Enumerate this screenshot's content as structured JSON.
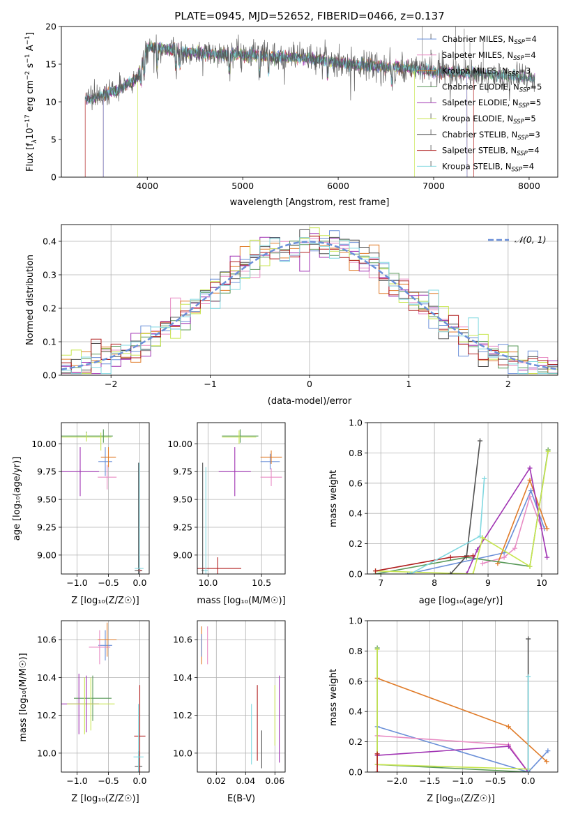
{
  "colors": {
    "Chabrier MILES": "#6a8fd8",
    "Salpeter MILES": "#e88cc4",
    "Kroupa MILES": "#e07b28",
    "Chabrier ELODIE": "#5a9a5a",
    "Salpeter ELODIE": "#a033b3",
    "Kroupa ELODIE": "#c8e650",
    "Chabrier STELIB": "#505050",
    "Salpeter STELIB": "#b01e1e",
    "Kroupa STELIB": "#80d8e0",
    "normal": "#6a8fd8"
  },
  "chart_data": [
    {
      "id": "spectrum",
      "type": "line",
      "title": "PLATE=0945, MJD=52652, FIBERID=0466, z=0.137",
      "xlabel": "wavelength [Angstrom, rest frame]",
      "ylabel_parts": [
        "Flux [f",
        "λ",
        "10",
        "−17",
        " erg cm",
        "−2",
        " s",
        "−1",
        " A",
        "−1",
        "]"
      ],
      "xlim": [
        3100,
        8300
      ],
      "ylim": [
        0,
        20
      ],
      "xticks": [
        4000,
        5000,
        6000,
        7000,
        8000
      ],
      "yticks": [
        0,
        5,
        10,
        15,
        20
      ],
      "legend_position": "upper-right",
      "legend": [
        {
          "name": "Chabrier MILES",
          "nssp": "4"
        },
        {
          "name": "Salpeter MILES",
          "nssp": "4"
        },
        {
          "name": "Kroupa MILES",
          "nssp": "3"
        },
        {
          "name": "Chabrier ELODIE",
          "nssp": "5"
        },
        {
          "name": "Salpeter ELODIE",
          "nssp": "5"
        },
        {
          "name": "Kroupa ELODIE",
          "nssp": "5"
        },
        {
          "name": "Chabrier STELIB",
          "nssp": "3"
        },
        {
          "name": "Salpeter STELIB",
          "nssp": "4"
        },
        {
          "name": "Kroupa STELIB",
          "nssp": "4"
        }
      ],
      "data_continuum": {
        "x": [
          3350,
          3500,
          3700,
          3900,
          4000,
          4100,
          4300,
          4600,
          4900,
          5200,
          5500,
          5800,
          6100,
          6400,
          6700,
          7000,
          7300,
          7600,
          7900,
          8060
        ],
        "y": [
          10.2,
          10.8,
          11.5,
          13.2,
          17.2,
          17.2,
          16.8,
          16.4,
          16.3,
          16.1,
          15.9,
          15.6,
          15.0,
          14.7,
          14.5,
          14.1,
          13.8,
          13.6,
          13.3,
          13.0
        ]
      },
      "model_cutoffs": [
        {
          "name": "Kroupa MILES",
          "range": [
            3540,
            7350
          ]
        },
        {
          "name": "Salpeter MILES",
          "range": [
            3540,
            7350
          ]
        },
        {
          "name": "Chabrier MILES",
          "range": [
            3540,
            7350
          ]
        },
        {
          "name": "Kroupa ELODIE",
          "range": [
            3900,
            6800
          ]
        },
        {
          "name": "Salpeter STELIB",
          "range": [
            3350,
            7420
          ]
        }
      ]
    },
    {
      "id": "residuals",
      "type": "line",
      "xlabel": "(data-model)/error",
      "ylabel": "Normed distribution",
      "xlim": [
        -2.5,
        2.5
      ],
      "ylim": [
        0,
        0.45
      ],
      "xticks": [
        -2,
        -1,
        0,
        1,
        2
      ],
      "yticks": [
        0.0,
        0.1,
        0.2,
        0.3,
        0.4
      ],
      "grid": true,
      "legend_position": "upper-right",
      "legend_label": "𝒩(0, 1)",
      "bin_width": 0.1,
      "reference": {
        "name": "𝒩(0, 1)",
        "mean": 0,
        "sigma": 1
      }
    },
    {
      "id": "age-Z",
      "type": "scatter",
      "xlabel": "Z [log₁₀(Z/Z☉)]",
      "ylabel": "age  [log₁₀(age/yr)]",
      "xlim": [
        -1.25,
        0.15
      ],
      "ylim": [
        8.83,
        10.19
      ],
      "xticks": [
        -1.0,
        -0.5,
        0.0
      ],
      "yticks": [
        9.0,
        9.25,
        9.5,
        9.75,
        10.0
      ],
      "grid": true,
      "crosses": [
        {
          "name": "Chabrier MILES",
          "x": -0.55,
          "xerr": 0.11,
          "y": 9.84,
          "yerr": 0.13
        },
        {
          "name": "Salpeter MILES",
          "x": -0.52,
          "xerr": 0.15,
          "y": 9.7,
          "yerr": 0.11
        },
        {
          "name": "Kroupa MILES",
          "x": -0.5,
          "xerr": 0.12,
          "y": 9.88,
          "yerr": 0.09
        },
        {
          "name": "Chabrier ELODIE",
          "x": -0.85,
          "xerr": 0.42,
          "y": 10.07,
          "yerr": 0.04
        },
        {
          "name": "Salpeter ELODIE",
          "x": -0.95,
          "xerr": 0.3,
          "y": 9.75,
          "yerr": 0.22
        },
        {
          "name": "Kroupa ELODIE",
          "x": -0.85,
          "xerr": 0.4,
          "y": 10.06,
          "yerr": 0.04
        },
        {
          "name": "Chabrier STELIB",
          "x": -0.02,
          "xerr": 0.06,
          "y": 8.86,
          "yerr": 0.97
        },
        {
          "name": "Salpeter STELIB",
          "x": 0.0,
          "xerr": 0.03,
          "y": 8.86,
          "yerr": 0.02
        },
        {
          "name": "Kroupa STELIB",
          "x": -0.01,
          "xerr": 0.07,
          "y": 8.88,
          "yerr": 0.95
        },
        {
          "name": "Salpeter ELODIE",
          "x": -0.95,
          "xerr": 0.0,
          "y": 9.75,
          "yerr": 0.02
        },
        {
          "name": "Kroupa ELODIE",
          "x": -0.62,
          "xerr": 0.0,
          "y": 10.02,
          "yerr": 0.08
        },
        {
          "name": "Chabrier ELODIE",
          "x": -0.58,
          "xerr": 0.0,
          "y": 10.07,
          "yerr": 0.06
        }
      ]
    },
    {
      "id": "age-mass",
      "type": "scatter",
      "xlabel": "mass [log₁₀(M/M☉)]",
      "xlim": [
        9.9,
        10.72
      ],
      "ylim": [
        8.83,
        10.19
      ],
      "xticks": [
        10.0,
        10.5
      ],
      "yticks": [
        9.0,
        9.25,
        9.5,
        9.75,
        10.0
      ],
      "grid": true,
      "crosses": [
        {
          "name": "Chabrier MILES",
          "x": 10.58,
          "xerr": 0.09,
          "y": 9.84,
          "yerr": 0.07
        },
        {
          "name": "Salpeter MILES",
          "x": 10.59,
          "xerr": 0.1,
          "y": 9.7,
          "yerr": 0.08
        },
        {
          "name": "Kroupa MILES",
          "x": 10.59,
          "xerr": 0.1,
          "y": 9.88,
          "yerr": 0.06
        },
        {
          "name": "Chabrier ELODIE",
          "x": 10.3,
          "xerr": 0.17,
          "y": 10.07,
          "yerr": 0.06
        },
        {
          "name": "Salpeter ELODIE",
          "x": 10.25,
          "xerr": 0.15,
          "y": 9.75,
          "yerr": 0.22
        },
        {
          "name": "Kroupa ELODIE",
          "x": 10.29,
          "xerr": 0.16,
          "y": 10.06,
          "yerr": 0.06
        },
        {
          "name": "Chabrier STELIB",
          "x": 9.95,
          "xerr": 0.01,
          "y": 8.86,
          "yerr": 0.97
        },
        {
          "name": "Salpeter STELIB",
          "x": 10.09,
          "xerr": 0.22,
          "y": 8.88,
          "yerr": 0.1
        },
        {
          "name": "Kroupa STELIB",
          "x": 9.98,
          "xerr": 0.02,
          "y": 8.86,
          "yerr": 0.93
        }
      ]
    },
    {
      "id": "weight-age",
      "type": "line",
      "xlabel": "age  [log₁₀(age/yr)]",
      "ylabel": "mass weight",
      "xlim": [
        6.75,
        10.3
      ],
      "ylim": [
        0,
        1.0
      ],
      "xticks": [
        7,
        8,
        9,
        10
      ],
      "yticks": [
        0.0,
        0.2,
        0.4,
        0.6,
        0.8,
        1.0
      ],
      "grid": true,
      "series": [
        {
          "name": "Chabrier MILES",
          "x": [
            7.5,
            9.3,
            9.8,
            10.05
          ],
          "y": [
            0.0,
            0.14,
            0.55,
            0.3
          ]
        },
        {
          "name": "Salpeter MILES",
          "x": [
            8.9,
            9.3,
            9.5,
            9.78,
            10.0
          ],
          "y": [
            0.07,
            0.11,
            0.17,
            0.51,
            0.3
          ]
        },
        {
          "name": "Kroupa MILES",
          "x": [
            9.18,
            9.78,
            10.1
          ],
          "y": [
            0.07,
            0.62,
            0.3
          ]
        },
        {
          "name": "Chabrier ELODIE",
          "x": [
            6.9,
            8.6,
            9.78,
            10.12
          ],
          "y": [
            0.0,
            0.11,
            0.05,
            0.82
          ]
        },
        {
          "name": "Salpeter ELODIE",
          "x": [
            8.6,
            8.8,
            9.78,
            10.1
          ],
          "y": [
            0.0,
            0.16,
            0.7,
            0.11
          ]
        },
        {
          "name": "Kroupa ELODIE",
          "x": [
            6.9,
            8.72,
            8.9,
            9.78,
            10.12
          ],
          "y": [
            0.02,
            0.0,
            0.24,
            0.05,
            0.81
          ]
        },
        {
          "name": "Chabrier STELIB",
          "x": [
            8.3,
            8.6,
            8.85
          ],
          "y": [
            0.0,
            0.12,
            0.88
          ]
        },
        {
          "name": "Salpeter STELIB",
          "x": [
            6.9,
            8.3,
            8.72
          ],
          "y": [
            0.02,
            0.11,
            0.12
          ]
        },
        {
          "name": "Kroupa STELIB",
          "x": [
            7.55,
            8.85,
            8.93
          ],
          "y": [
            0.0,
            0.25,
            0.63
          ]
        }
      ]
    },
    {
      "id": "mass-Z",
      "type": "scatter",
      "xlabel": "Z [log₁₀(Z/Z☉)]",
      "ylabel": "mass [log₁₀(M/M☉)]",
      "xlim": [
        -1.25,
        0.15
      ],
      "ylim": [
        9.9,
        10.7
      ],
      "xticks": [
        -1.0,
        -0.5,
        0.0
      ],
      "yticks": [
        10.0,
        10.2,
        10.4,
        10.6
      ],
      "grid": true,
      "crosses": [
        {
          "name": "Chabrier MILES",
          "x": -0.55,
          "xerr": 0.11,
          "y": 10.57,
          "yerr": 0.08
        },
        {
          "name": "Salpeter MILES",
          "x": -0.64,
          "xerr": 0.17,
          "y": 10.56,
          "yerr": 0.09
        },
        {
          "name": "Kroupa MILES",
          "x": -0.52,
          "xerr": 0.15,
          "y": 10.6,
          "yerr": 0.09
        },
        {
          "name": "Chabrier ELODIE",
          "x": -0.75,
          "xerr": 0.3,
          "y": 10.29,
          "yerr": 0.12
        },
        {
          "name": "Salpeter ELODIE",
          "x": -0.97,
          "xerr": 0.32,
          "y": 10.26,
          "yerr": 0.16
        },
        {
          "name": "Kroupa ELODIE",
          "x": -0.78,
          "xerr": 0.38,
          "y": 10.26,
          "yerr": 0.14
        },
        {
          "name": "Chabrier STELIB",
          "x": -0.02,
          "xerr": 0.06,
          "y": 9.93,
          "yerr": 0.08
        },
        {
          "name": "Salpeter STELIB",
          "x": 0.0,
          "xerr": 0.09,
          "y": 10.09,
          "yerr": 0.27
        },
        {
          "name": "Kroupa STELIB",
          "x": -0.02,
          "xerr": 0.08,
          "y": 9.98,
          "yerr": 0.28
        },
        {
          "name": "Salpeter ELODIE",
          "x": -0.85,
          "xerr": 0.0,
          "y": 10.26,
          "yerr": 0.15
        },
        {
          "name": "Kroupa ELODIE",
          "x": -0.88,
          "xerr": 0.0,
          "y": 10.25,
          "yerr": 0.15
        }
      ]
    },
    {
      "id": "mass-EBV",
      "type": "scatter",
      "xlabel": "E(B-V)",
      "xlim": [
        0.007,
        0.067
      ],
      "ylim": [
        9.9,
        10.7
      ],
      "xticks": [
        0.02,
        0.04,
        0.06
      ],
      "yticks": [
        10.0,
        10.2,
        10.4,
        10.6
      ],
      "grid": true,
      "crosses": [
        {
          "name": "Kroupa MILES",
          "x": 0.01,
          "xerr": 0.0,
          "y": 10.57,
          "yerr": 0.1
        },
        {
          "name": "Salpeter MILES",
          "x": 0.014,
          "xerr": 0.0,
          "y": 10.57,
          "yerr": 0.1
        },
        {
          "name": "Chabrier MILES",
          "x": 0.01,
          "xerr": 0.0,
          "y": 10.57,
          "yerr": 0.06
        },
        {
          "name": "Kroupa STELIB",
          "x": 0.044,
          "xerr": 0.0,
          "y": 10.1,
          "yerr": 0.16
        },
        {
          "name": "Salpeter STELIB",
          "x": 0.048,
          "xerr": 0.0,
          "y": 10.16,
          "yerr": 0.2
        },
        {
          "name": "Chabrier STELIB",
          "x": 0.051,
          "xerr": 0.0,
          "y": 10.02,
          "yerr": 0.1
        },
        {
          "name": "Kroupa ELODIE",
          "x": 0.06,
          "xerr": 0.0,
          "y": 10.2,
          "yerr": 0.16
        },
        {
          "name": "Salpeter ELODIE",
          "x": 0.063,
          "xerr": 0.0,
          "y": 10.18,
          "yerr": 0.23
        }
      ]
    },
    {
      "id": "weight-Z",
      "type": "line",
      "xlabel": "Z [log₁₀(Z/Z☉)]",
      "ylabel": "mass weight",
      "xlim": [
        -2.45,
        0.45
      ],
      "ylim": [
        0,
        1.0
      ],
      "xticks": [
        -2.0,
        -1.5,
        -1.0,
        -0.5,
        0.0
      ],
      "yticks": [
        0.0,
        0.2,
        0.4,
        0.6,
        0.8,
        1.0
      ],
      "grid": true,
      "series": [
        {
          "name": "Chabrier MILES",
          "x": [
            -2.3,
            0.0,
            0.3
          ],
          "y": [
            0.3,
            0.0,
            0.14
          ]
        },
        {
          "name": "Salpeter MILES",
          "x": [
            -2.3,
            -0.3,
            0.0
          ],
          "y": [
            0.24,
            0.18,
            0.0
          ]
        },
        {
          "name": "Kroupa MILES",
          "x": [
            -2.3,
            -0.3,
            0.28
          ],
          "y": [
            0.62,
            0.3,
            0.07
          ]
        },
        {
          "name": "Chabrier ELODIE",
          "x": [
            -2.3,
            -2.3,
            0.0
          ],
          "y": [
            0.82,
            0.05,
            0.0
          ]
        },
        {
          "name": "Salpeter ELODIE",
          "x": [
            -2.3,
            -0.3,
            0.0
          ],
          "y": [
            0.11,
            0.17,
            0.0
          ]
        },
        {
          "name": "Kroupa ELODIE",
          "x": [
            -2.3,
            -2.3,
            0.0
          ],
          "y": [
            0.81,
            0.05,
            0.02
          ]
        },
        {
          "name": "Chabrier STELIB",
          "x": [
            0.0,
            0.0
          ],
          "y": [
            0.0,
            0.88
          ]
        },
        {
          "name": "Salpeter STELIB",
          "x": [
            -2.3,
            -2.3
          ],
          "y": [
            0.0,
            0.12
          ]
        },
        {
          "name": "Kroupa STELIB",
          "x": [
            0.0,
            0.0
          ],
          "y": [
            0.0,
            0.63
          ]
        }
      ]
    }
  ]
}
